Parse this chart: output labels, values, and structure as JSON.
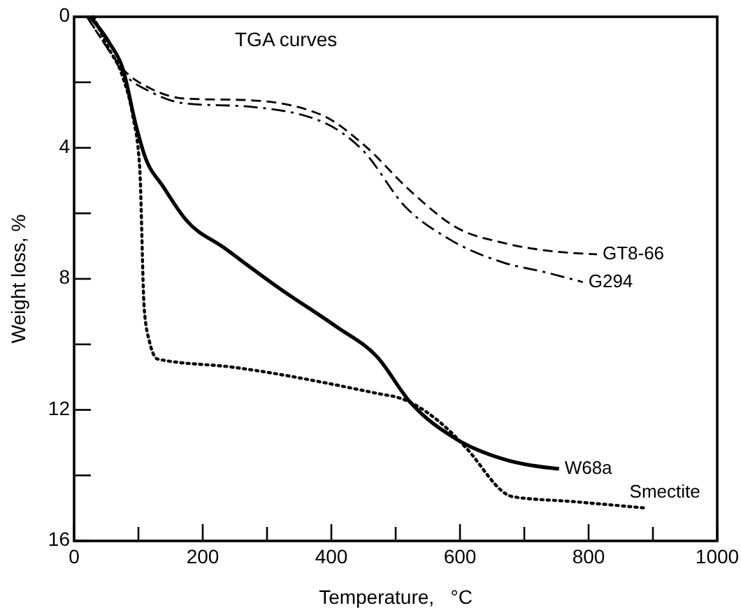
{
  "chart_data": {
    "type": "line",
    "title": "TGA curves",
    "xlabel": "Temperature,   °C",
    "ylabel": "Weight loss, %",
    "xlim": [
      0,
      1000
    ],
    "xticks": [
      0,
      {
        "value": 100,
        "label": null
      },
      200,
      {
        "value": 300,
        "label": null
      },
      400,
      {
        "value": 500,
        "label": null
      },
      600,
      {
        "value": 700,
        "label": null
      },
      800,
      {
        "value": 900,
        "label": null
      },
      1000
    ],
    "ylim": [
      16,
      0
    ],
    "yticks": [
      0,
      {
        "value": 2,
        "label": null
      },
      4,
      {
        "value": 6,
        "label": null
      },
      8,
      {
        "value": 10,
        "label": null
      },
      12,
      {
        "value": 14,
        "label": null
      },
      16
    ],
    "grid": false,
    "series": [
      {
        "name": "GT8-66",
        "color": "#000000",
        "line_style": "dashed",
        "x": [
          20,
          50,
          76,
          120,
          174,
          276,
          385,
          450,
          522,
          596,
          667,
          740,
          813
        ],
        "values": [
          0,
          0.9,
          1.6,
          2.2,
          2.5,
          2.55,
          3.0,
          3.9,
          5.3,
          6.45,
          6.9,
          7.15,
          7.25
        ]
      },
      {
        "name": "G294",
        "color": "#000000",
        "line_style": "dashdot",
        "x": [
          20,
          50,
          76,
          120,
          174,
          276,
          385,
          450,
          515,
          580,
          667,
          733,
          791
        ],
        "values": [
          0,
          0.9,
          1.7,
          2.3,
          2.65,
          2.75,
          3.2,
          4.1,
          5.8,
          6.75,
          7.5,
          7.8,
          8.1
        ]
      },
      {
        "name": "W68a",
        "color": "#000000",
        "line_style": "solid",
        "x": [
          25,
          55,
          76,
          96,
          109,
          139,
          174,
          233,
          320,
          407,
          472,
          522,
          595,
          667,
          754
        ],
        "values": [
          0,
          0.8,
          1.6,
          3.3,
          4.2,
          5.2,
          6.2,
          7.05,
          8.3,
          9.45,
          10.4,
          11.75,
          12.9,
          13.5,
          13.8
        ]
      },
      {
        "name": "Smectite",
        "color": "#000000",
        "line_style": "dotted",
        "x": [
          30,
          52,
          75,
          91,
          102,
          109,
          117,
          130,
          248,
          472,
          508,
          587,
          609,
          682,
          776,
          891
        ],
        "values": [
          0,
          0.9,
          1.8,
          3.0,
          4.6,
          8.9,
          9.9,
          10.45,
          10.7,
          11.5,
          11.65,
          12.7,
          13.15,
          14.65,
          14.8,
          15.0
        ]
      }
    ]
  }
}
